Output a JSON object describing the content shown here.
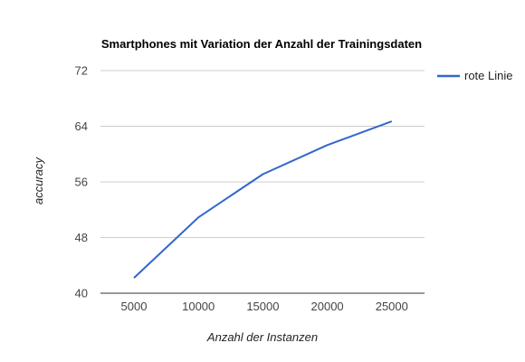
{
  "chart_data": {
    "type": "line",
    "title": "Smartphones mit Variation der Anzahl der Trainingsdaten",
    "xlabel": "Anzahl der Instanzen",
    "ylabel": "accuracy",
    "x": [
      5000,
      10000,
      15000,
      20000,
      25000
    ],
    "x_ticks": [
      "5000",
      "10000",
      "15000",
      "20000",
      "25000"
    ],
    "y_ticks": [
      40,
      48,
      56,
      64,
      72
    ],
    "ylim": [
      40,
      72
    ],
    "grid": "horizontal",
    "legend_position": "right",
    "series": [
      {
        "name": "rote Linie",
        "color": "#3366cc",
        "values": [
          42.2,
          50.9,
          57.1,
          61.3,
          64.7
        ]
      }
    ]
  }
}
